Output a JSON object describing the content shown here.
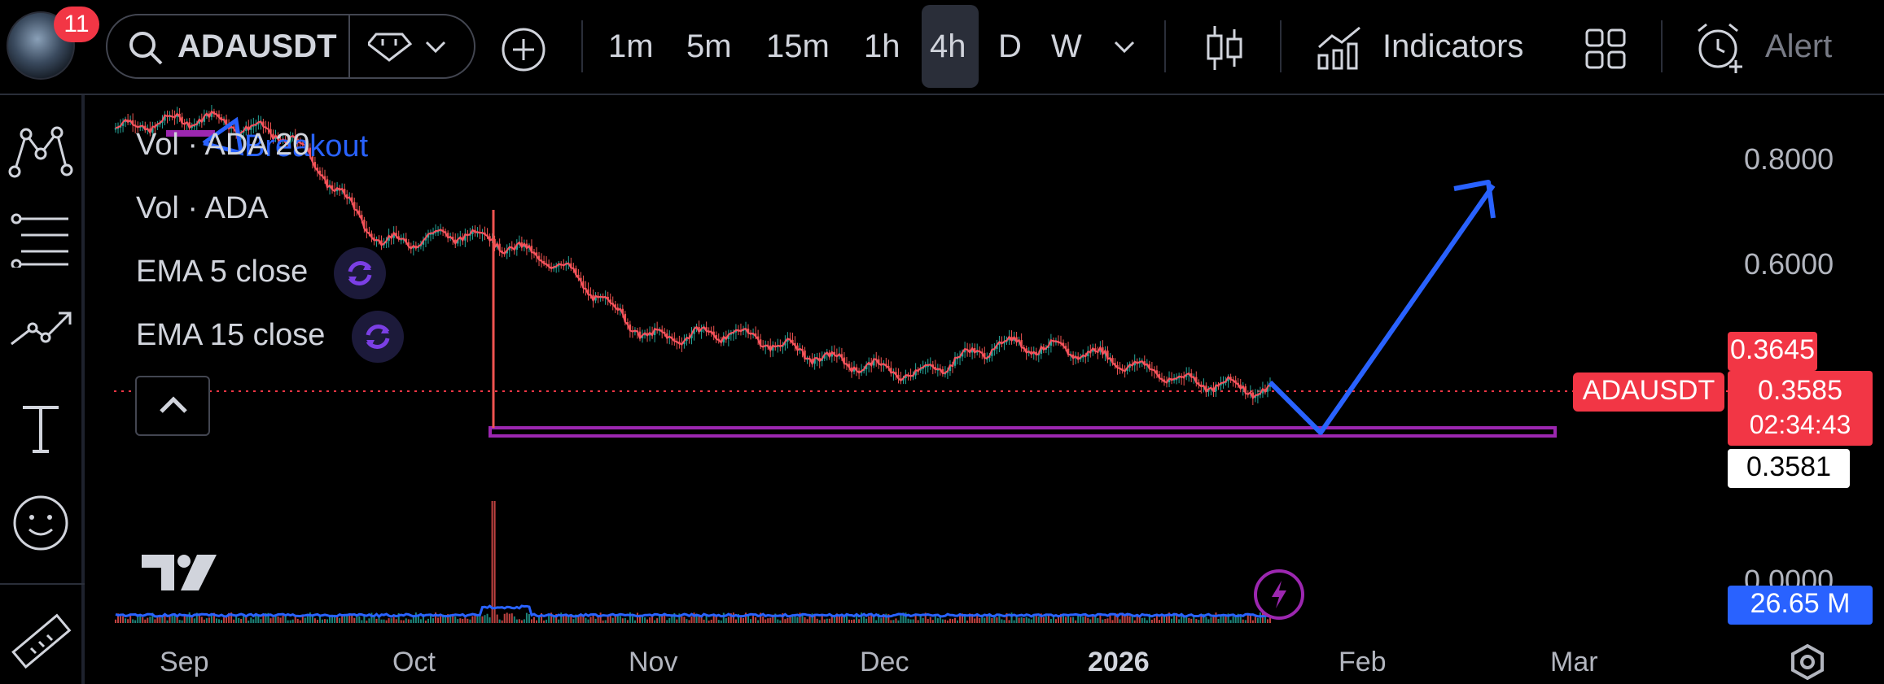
{
  "toolbar": {
    "notification_count": "11",
    "symbol": "ADAUSDT",
    "timeframes": [
      "1m",
      "5m",
      "15m",
      "1h",
      "4h",
      "D",
      "W"
    ],
    "active_timeframe": "4h",
    "indicators_label": "Indicators",
    "alert_label": "Alert"
  },
  "legend": {
    "vol_ma": "Vol · ADA 20",
    "vol": "Vol · ADA",
    "ema5": "EMA 5 close",
    "ema15": "EMA 15 close",
    "drawing_text": "Breakout"
  },
  "price_axis": {
    "ticks": [
      "0.8000",
      "0.6000",
      "0.0000"
    ],
    "symbol_tag": "ADAUSDT",
    "last_price": "0.3585",
    "countdown": "02:34:43",
    "high_label": "0.3645",
    "crosshair_label": "0.3581",
    "volume_label": "26.65 M"
  },
  "time_axis": {
    "labels": [
      "Sep",
      "Oct",
      "Nov",
      "Dec",
      "2026",
      "Feb",
      "Mar"
    ]
  },
  "colors": {
    "background": "#000000",
    "candle_up": "#26a69a",
    "candle_down": "#ef5350",
    "price_tag": "#f23645",
    "support_zone": "#9c27b0",
    "projection_arrow": "#2962ff",
    "volume_tag": "#2962ff"
  },
  "chart_data": {
    "type": "line",
    "x": [
      "Sep",
      "Oct",
      "Nov",
      "Dec",
      "2026",
      "Feb"
    ],
    "price_path": [
      0.86,
      0.88,
      0.84,
      0.64,
      0.66,
      0.6,
      0.46,
      0.47,
      0.42,
      0.39,
      0.45,
      0.43,
      0.38,
      0.3585
    ],
    "support_level": 0.31,
    "projection": {
      "low": 0.31,
      "target": 0.76
    },
    "last_price": 0.3585
  }
}
